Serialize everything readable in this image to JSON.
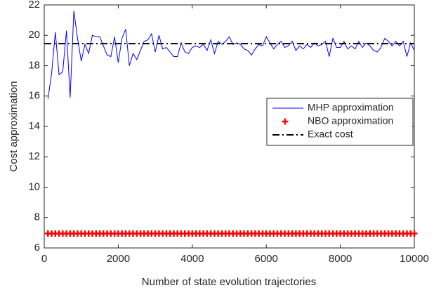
{
  "chart_data": {
    "type": "line",
    "xlabel": "Number of state evolution trajectories",
    "ylabel": "Cost approximation",
    "xlim": [
      0,
      10000
    ],
    "ylim": [
      6,
      22
    ],
    "xticks": [
      0,
      2000,
      4000,
      6000,
      8000,
      10000
    ],
    "yticks": [
      6,
      8,
      10,
      12,
      14,
      16,
      18,
      20,
      22
    ],
    "grid": false,
    "legend": "right",
    "x": [
      100,
      200,
      300,
      400,
      500,
      600,
      700,
      800,
      900,
      1000,
      1100,
      1200,
      1300,
      1400,
      1500,
      1600,
      1700,
      1800,
      1900,
      2000,
      2100,
      2200,
      2300,
      2400,
      2500,
      2600,
      2700,
      2800,
      2900,
      3000,
      3100,
      3200,
      3300,
      3400,
      3500,
      3600,
      3700,
      3800,
      3900,
      4000,
      4100,
      4200,
      4300,
      4400,
      4500,
      4600,
      4700,
      4800,
      4900,
      5000,
      5100,
      5200,
      5300,
      5400,
      5500,
      5600,
      5700,
      5800,
      5900,
      6000,
      6100,
      6200,
      6300,
      6400,
      6500,
      6600,
      6700,
      6800,
      6900,
      7000,
      7100,
      7200,
      7300,
      7400,
      7500,
      7600,
      7700,
      7800,
      7900,
      8000,
      8100,
      8200,
      8300,
      8400,
      8500,
      8600,
      8700,
      8800,
      8900,
      9000,
      9100,
      9200,
      9300,
      9400,
      9500,
      9600,
      9700,
      9800,
      9900,
      10000
    ],
    "series": [
      {
        "name": "MHP approximation",
        "color": "#0000ff",
        "linestyle": "solid",
        "values": [
          15.8,
          17.5,
          20.2,
          17.4,
          17.6,
          20.3,
          15.9,
          21.6,
          19.8,
          18.3,
          19.4,
          18.8,
          20.0,
          19.9,
          19.9,
          19.3,
          18.7,
          18.6,
          19.9,
          18.2,
          19.8,
          20.4,
          18.0,
          18.8,
          18.4,
          19.0,
          19.6,
          19.7,
          20.1,
          18.9,
          20.0,
          19.1,
          19.2,
          18.9,
          18.6,
          18.6,
          19.5,
          18.9,
          18.8,
          19.2,
          19.3,
          19.2,
          19.4,
          19.0,
          19.7,
          18.8,
          19.6,
          19.4,
          19.6,
          19.9,
          19.4,
          19.5,
          19.4,
          19.1,
          19.0,
          18.7,
          19.1,
          19.4,
          19.3,
          19.9,
          19.5,
          19.1,
          19.4,
          19.6,
          19.2,
          19.3,
          19.6,
          19.0,
          19.3,
          19.1,
          19.4,
          19.2,
          19.5,
          19.3,
          19.4,
          19.6,
          18.6,
          19.8,
          19.2,
          19.2,
          19.6,
          19.1,
          19.3,
          19.1,
          19.6,
          19.2,
          19.5,
          19.3,
          19.0,
          18.9,
          19.2,
          19.8,
          19.6,
          19.3,
          19.6,
          19.3,
          19.6,
          18.6,
          19.5,
          19.0
        ]
      },
      {
        "name": "NBO approximation",
        "color": "#ff0000",
        "marker": "+",
        "values": [
          6.95,
          6.95,
          6.95,
          6.95,
          6.95,
          6.95,
          6.95,
          6.95,
          6.95,
          6.95,
          6.95,
          6.95,
          6.95,
          6.95,
          6.95,
          6.95,
          6.95,
          6.95,
          6.95,
          6.95,
          6.95,
          6.95,
          6.95,
          6.95,
          6.95,
          6.95,
          6.95,
          6.95,
          6.95,
          6.95,
          6.95,
          6.95,
          6.95,
          6.95,
          6.95,
          6.95,
          6.95,
          6.95,
          6.95,
          6.95,
          6.95,
          6.95,
          6.95,
          6.95,
          6.95,
          6.95,
          6.95,
          6.95,
          6.95,
          6.95,
          6.95,
          6.95,
          6.95,
          6.95,
          6.95,
          6.95,
          6.95,
          6.95,
          6.95,
          6.95,
          6.95,
          6.95,
          6.95,
          6.95,
          6.95,
          6.95,
          6.95,
          6.95,
          6.95,
          6.95,
          6.95,
          6.95,
          6.95,
          6.95,
          6.95,
          6.95,
          6.95,
          6.95,
          6.95,
          6.95,
          6.95,
          6.95,
          6.95,
          6.95,
          6.95,
          6.95,
          6.95,
          6.95,
          6.95,
          6.95,
          6.95,
          6.95,
          6.95,
          6.95,
          6.95,
          6.95,
          6.95,
          6.95,
          6.95,
          6.95
        ]
      },
      {
        "name": "Exact cost",
        "color": "#000000",
        "linestyle": "dashdot",
        "x": [
          0,
          10000
        ],
        "values": [
          19.45,
          19.45
        ]
      }
    ]
  }
}
